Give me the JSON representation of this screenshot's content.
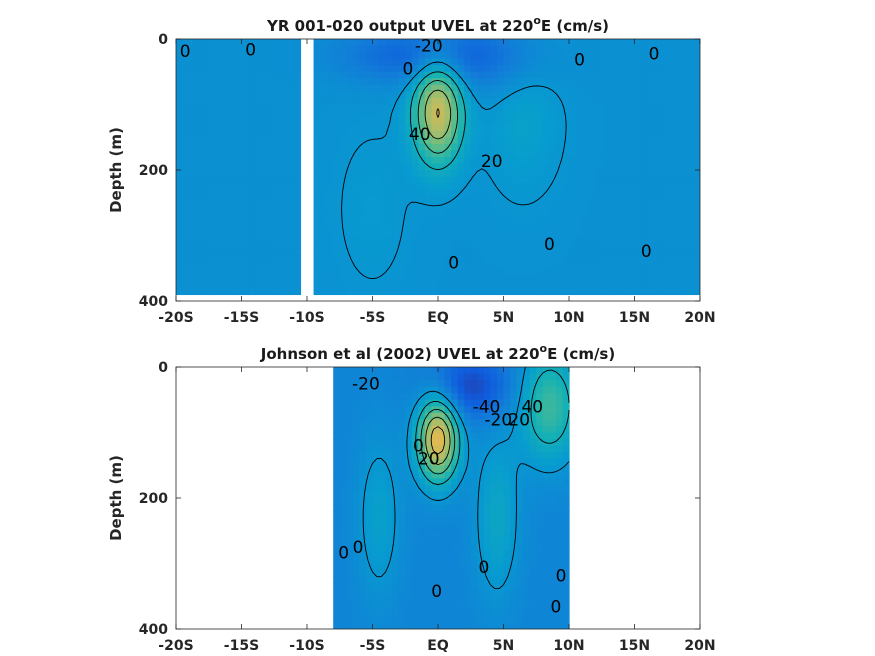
{
  "chart_data": [
    {
      "type": "heatmap",
      "title": "YR 001-020 output UVEL at 220",
      "title_sup": "o",
      "title_tail": "E (cm/s)",
      "ylabel": "Depth (m)",
      "xlim": [
        -20,
        20
      ],
      "ylim": [
        0,
        400
      ],
      "y_reversed": true,
      "x_ticks": [
        -20,
        -15,
        -10,
        -5,
        0,
        5,
        10,
        15,
        20
      ],
      "x_tick_labels": [
        "-20S",
        "-15S",
        "-10S",
        "-5S",
        "EQ",
        "5N",
        "10N",
        "15N",
        "20N"
      ],
      "y_ticks": [
        0,
        200,
        400
      ],
      "y_tick_labels": [
        "0",
        "200",
        "400"
      ],
      "data_extent": {
        "x": [
          -20,
          20
        ],
        "y": [
          0,
          385
        ]
      },
      "gap_x": [
        -10.3,
        -9.3
      ],
      "background_value": -3,
      "features": [
        {
          "name": "equatorial-undercurrent",
          "x": 0,
          "depth": 110,
          "sx": 1.3,
          "sd": 55,
          "amp": 85
        },
        {
          "name": "south-equatorial-current",
          "x": -2,
          "depth": 25,
          "sx": 4,
          "sd": 30,
          "amp": -28
        },
        {
          "name": "south-equatorial-current-north",
          "x": 4,
          "depth": 30,
          "sx": 3,
          "sd": 40,
          "amp": -18
        },
        {
          "name": "northern-countercurrent",
          "x": 6.5,
          "depth": 120,
          "sx": 2,
          "sd": 80,
          "amp": 12
        },
        {
          "name": "southern-subsurface-countercurrent",
          "x": -5,
          "depth": 260,
          "sx": 2,
          "sd": 90,
          "amp": 6
        }
      ],
      "contour_levels": [
        0,
        20,
        40,
        60,
        80
      ],
      "contour_labels": [
        {
          "text": "-20",
          "x": -0.7,
          "y": 10
        },
        {
          "text": "0",
          "x": -19.3,
          "y": 18
        },
        {
          "text": "0",
          "x": -14.3,
          "y": 16
        },
        {
          "text": "0",
          "x": 10.8,
          "y": 31
        },
        {
          "text": "0",
          "x": 16.5,
          "y": 22
        },
        {
          "text": "0",
          "x": -2.3,
          "y": 45
        },
        {
          "text": "40",
          "x": -1.4,
          "y": 145
        },
        {
          "text": "20",
          "x": 4.1,
          "y": 186
        },
        {
          "text": "0",
          "x": 8.5,
          "y": 313
        },
        {
          "text": "0",
          "x": 15.9,
          "y": 324
        },
        {
          "text": "0",
          "x": 1.2,
          "y": 341
        }
      ]
    },
    {
      "type": "heatmap",
      "title": "Johnson et al (2002) UVEL at 220",
      "title_sup": "o",
      "title_tail": "E (cm/s)",
      "ylabel": "Depth (m)",
      "xlim": [
        -20,
        20
      ],
      "ylim": [
        0,
        400
      ],
      "y_reversed": true,
      "x_ticks": [
        -20,
        -15,
        -10,
        -5,
        0,
        5,
        10,
        15,
        20
      ],
      "x_tick_labels": [
        "-20S",
        "-15S",
        "-10S",
        "-5S",
        "EQ",
        "5N",
        "10N",
        "15N",
        "20N"
      ],
      "y_ticks": [
        0,
        200,
        400
      ],
      "y_tick_labels": [
        "0",
        "200",
        "400"
      ],
      "data_extent": {
        "x": [
          -8,
          10
        ],
        "y": [
          0,
          400
        ]
      },
      "background_value": -12,
      "features": [
        {
          "name": "equatorial-undercurrent",
          "x": 0,
          "depth": 110,
          "sx": 1.1,
          "sd": 45,
          "amp": 105
        },
        {
          "name": "south-equatorial-current",
          "x": 2.5,
          "depth": 30,
          "sx": 2.2,
          "sd": 35,
          "amp": -35
        },
        {
          "name": "north-equatorial-countercurrent",
          "x": 8.5,
          "depth": 60,
          "sx": 1.6,
          "sd": 60,
          "amp": 50
        },
        {
          "name": "subsurface-countercurrent-north",
          "x": 4.5,
          "depth": 230,
          "sx": 1.2,
          "sd": 90,
          "amp": 25
        },
        {
          "name": "subsurface-countercurrent-south",
          "x": -4.5,
          "depth": 230,
          "sx": 1.2,
          "sd": 90,
          "amp": 20
        }
      ],
      "contour_levels": [
        0,
        20,
        40,
        60,
        80
      ],
      "contour_labels": [
        {
          "text": "-20",
          "x": -5.5,
          "y": 25
        },
        {
          "text": "-40",
          "x": 3.7,
          "y": 60
        },
        {
          "text": "-20",
          "x": 4.6,
          "y": 80
        },
        {
          "text": "20",
          "x": 6.2,
          "y": 80
        },
        {
          "text": "40",
          "x": 7.2,
          "y": 60
        },
        {
          "text": "0",
          "x": -1.5,
          "y": 120
        },
        {
          "text": "20",
          "x": -0.7,
          "y": 140
        },
        {
          "text": "0",
          "x": -6.1,
          "y": 275
        },
        {
          "text": "0",
          "x": -7.2,
          "y": 283
        },
        {
          "text": "0",
          "x": 3.5,
          "y": 305
        },
        {
          "text": "0",
          "x": 9.4,
          "y": 318
        },
        {
          "text": "0",
          "x": -0.1,
          "y": 342
        },
        {
          "text": "0",
          "x": 9.0,
          "y": 366
        }
      ]
    }
  ]
}
